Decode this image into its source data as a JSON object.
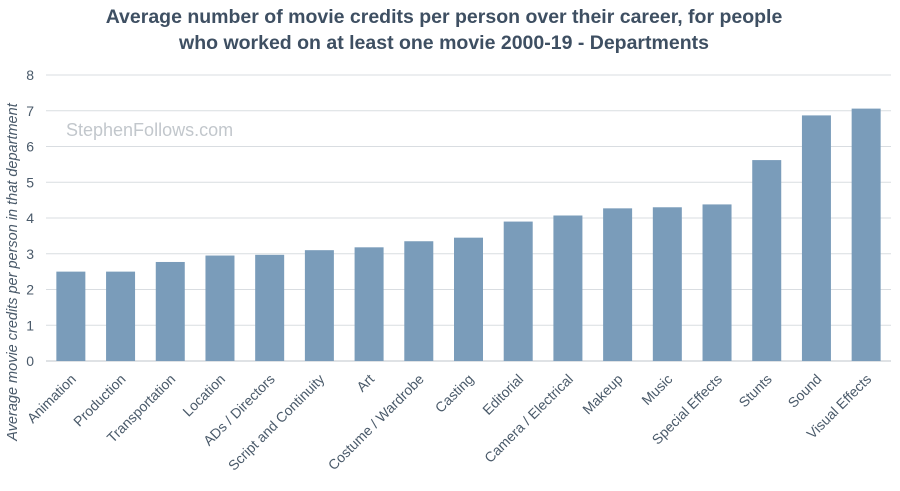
{
  "chart_data": {
    "type": "bar",
    "title_lines": [
      "Average number of movie credits per person over their career, for people",
      "who worked on at least one movie 2000-19 - Departments"
    ],
    "watermark": "StephenFollows.com",
    "ylabel": "Average movie credits per person in that department",
    "xlabel": "",
    "ylim": [
      0,
      8
    ],
    "yticks": [
      "0",
      "1",
      "2",
      "3",
      "4",
      "5",
      "6",
      "7",
      "8"
    ],
    "grid": true,
    "legend": "none",
    "bar_color": "#7a9cba",
    "categories": [
      "Animation",
      "Production",
      "Transportation",
      "Location",
      "ADs / Directors",
      "Script and Continuity",
      "Art",
      "Costume / Wardrobe",
      "Casting",
      "Editorial",
      "Camera / Electrical",
      "Makeup",
      "Music",
      "Special Effects",
      "Stunts",
      "Sound",
      "Visual Effects"
    ],
    "values": [
      2.5,
      2.5,
      2.77,
      2.95,
      2.97,
      3.1,
      3.18,
      3.35,
      3.45,
      3.9,
      4.07,
      4.27,
      4.3,
      4.38,
      5.62,
      6.87,
      7.06
    ]
  }
}
